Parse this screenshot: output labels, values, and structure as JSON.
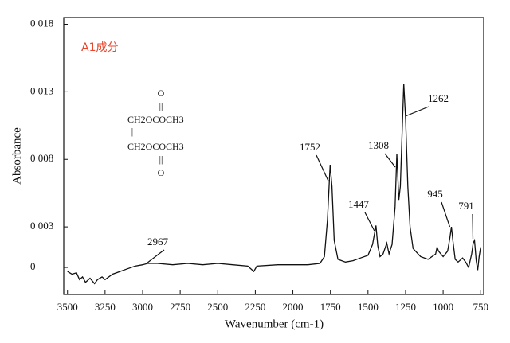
{
  "chart_data": {
    "type": "line",
    "label": "A1成分",
    "xlabel": "Wavenumber (cm-1)",
    "ylabel": "Absorbance",
    "structure": [
      "O",
      "||",
      "CH2OCOCH3",
      "|",
      "CH2OCOCH3",
      "||",
      "O"
    ],
    "peaks": [
      2967,
      1752,
      1447,
      1308,
      1262,
      945,
      791
    ],
    "color": "#111111",
    "label_color": "#e8452c",
    "xlim": [
      3525,
      730
    ],
    "ylim": [
      -0.002,
      0.0185
    ],
    "xticks": [
      3500,
      3250,
      3000,
      2750,
      2500,
      2250,
      2000,
      1750,
      1500,
      1250,
      1000,
      750
    ],
    "yticks": [
      {
        "value": 0.018,
        "label": "0 018"
      },
      {
        "value": 0.013,
        "label": "0 013"
      },
      {
        "value": 0.008,
        "label": "0 008"
      },
      {
        "value": 0.003,
        "label": "0 003"
      },
      0
    ],
    "x": [
      3500,
      3470,
      3440,
      3420,
      3400,
      3380,
      3350,
      3320,
      3300,
      3270,
      3250,
      3200,
      3150,
      3100,
      3050,
      3000,
      2967,
      2900,
      2800,
      2700,
      2600,
      2500,
      2400,
      2300,
      2260,
      2240,
      2100,
      2000,
      1900,
      1820,
      1790,
      1770,
      1752,
      1740,
      1725,
      1700,
      1650,
      1600,
      1550,
      1500,
      1470,
      1447,
      1435,
      1420,
      1400,
      1375,
      1360,
      1340,
      1320,
      1308,
      1295,
      1285,
      1270,
      1262,
      1250,
      1235,
      1220,
      1200,
      1150,
      1100,
      1050,
      1040,
      1030,
      1000,
      970,
      955,
      945,
      935,
      920,
      900,
      870,
      850,
      830,
      810,
      800,
      791,
      780,
      770,
      760,
      750
    ],
    "values": [
      -0.0003,
      -0.0005,
      -0.0004,
      -0.0009,
      -0.0007,
      -0.0011,
      -0.0008,
      -0.0012,
      -0.0009,
      -0.0007,
      -0.0009,
      -0.0005,
      -0.0003,
      -0.0001,
      0.0001,
      0.0002,
      0.0003,
      0.0003,
      0.0002,
      0.0003,
      0.0002,
      0.0003,
      0.0002,
      0.0001,
      -0.0003,
      0.0001,
      0.0002,
      0.0002,
      0.0002,
      0.0003,
      0.0008,
      0.0035,
      0.0076,
      0.006,
      0.002,
      0.0006,
      0.0004,
      0.0005,
      0.0007,
      0.0009,
      0.0017,
      0.0031,
      0.0016,
      0.0008,
      0.001,
      0.0018,
      0.001,
      0.0017,
      0.0045,
      0.0084,
      0.005,
      0.006,
      0.011,
      0.0136,
      0.011,
      0.006,
      0.003,
      0.0014,
      0.0008,
      0.0006,
      0.001,
      0.0015,
      0.0012,
      0.0008,
      0.0012,
      0.0022,
      0.003,
      0.002,
      0.0006,
      0.0004,
      0.0007,
      0.0004,
      0,
      0.001,
      0.0018,
      0.002,
      0.0005,
      -0.0002,
      0.0008,
      0.0015
    ]
  }
}
